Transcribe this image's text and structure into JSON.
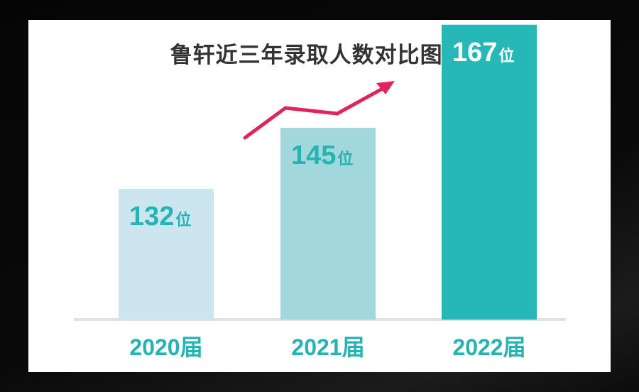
{
  "chart_data": {
    "type": "bar",
    "title": "鲁轩近三年录取人数对比图 ▼",
    "categories": [
      "2020届",
      "2021届",
      "2022届"
    ],
    "values": [
      132,
      145,
      167
    ],
    "unit": "位",
    "colors": [
      "#cce6f0",
      "#a2d8db",
      "#26b7b7"
    ],
    "label_colors": [
      "#26b3b3",
      "#26b3b3",
      "#ffffff"
    ],
    "category_color": "#27b3b3",
    "trend_color": "#e0245e"
  }
}
